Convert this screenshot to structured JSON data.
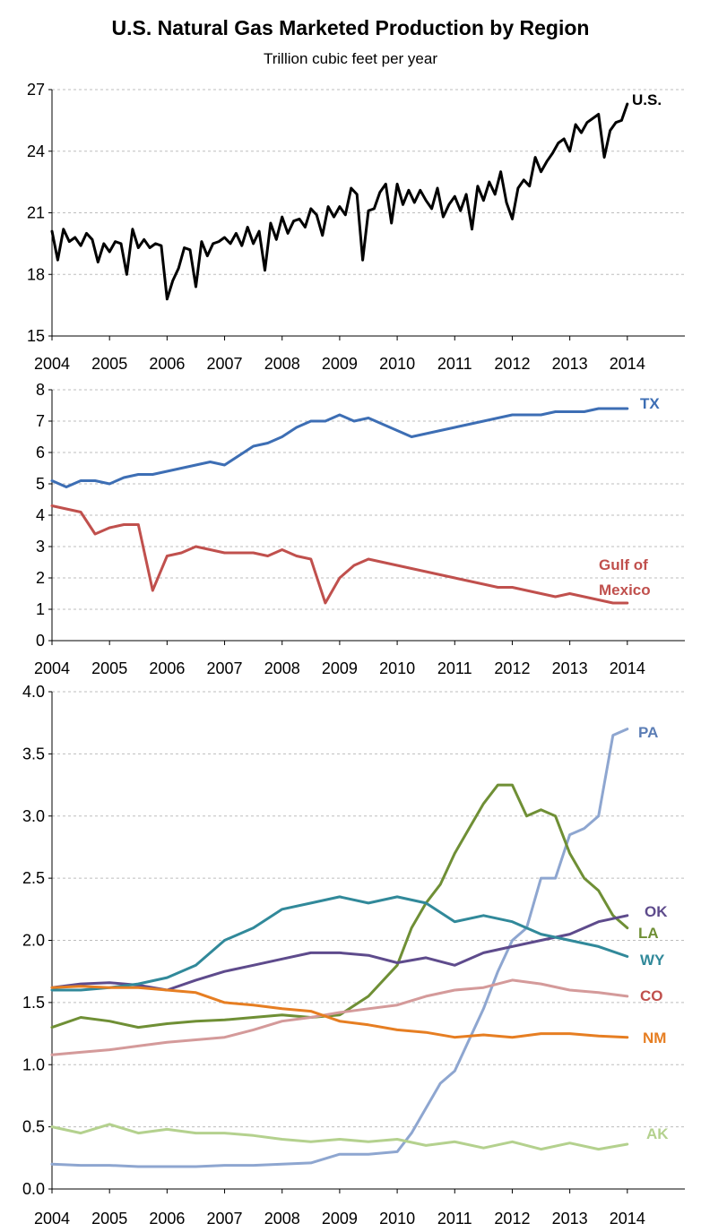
{
  "title": "U.S. Natural Gas Marketed Production by Region",
  "subtitle": "Trillion cubic feet per year",
  "chart_data": [
    {
      "type": "line",
      "x_ticks": [
        "2004",
        "2005",
        "2006",
        "2007",
        "2008",
        "2009",
        "2010",
        "2011",
        "2012",
        "2013",
        "2014"
      ],
      "xlim": [
        2004,
        2015
      ],
      "ylim": [
        15,
        27
      ],
      "y_ticks": [
        "15",
        "18",
        "21",
        "24",
        "27"
      ],
      "grid": "horizontal dashed",
      "series": [
        {
          "name": "U.S.",
          "color": "#000000",
          "x": [
            2004.0,
            2004.1,
            2004.2,
            2004.3,
            2004.4,
            2004.5,
            2004.6,
            2004.7,
            2004.8,
            2004.9,
            2005.0,
            2005.1,
            2005.2,
            2005.3,
            2005.4,
            2005.5,
            2005.6,
            2005.7,
            2005.8,
            2005.9,
            2006.0,
            2006.1,
            2006.2,
            2006.3,
            2006.4,
            2006.5,
            2006.6,
            2006.7,
            2006.8,
            2006.9,
            2007.0,
            2007.1,
            2007.2,
            2007.3,
            2007.4,
            2007.5,
            2007.6,
            2007.7,
            2007.8,
            2007.9,
            2008.0,
            2008.1,
            2008.2,
            2008.3,
            2008.4,
            2008.5,
            2008.6,
            2008.7,
            2008.8,
            2008.9,
            2009.0,
            2009.1,
            2009.2,
            2009.3,
            2009.4,
            2009.5,
            2009.6,
            2009.7,
            2009.8,
            2009.9,
            2010.0,
            2010.1,
            2010.2,
            2010.3,
            2010.4,
            2010.5,
            2010.6,
            2010.7,
            2010.8,
            2010.9,
            2011.0,
            2011.1,
            2011.2,
            2011.3,
            2011.4,
            2011.5,
            2011.6,
            2011.7,
            2011.8,
            2011.9,
            2012.0,
            2012.1,
            2012.2,
            2012.3,
            2012.4,
            2012.5,
            2012.6,
            2012.7,
            2012.8,
            2012.9,
            2013.0,
            2013.1,
            2013.2,
            2013.3,
            2013.4,
            2013.5,
            2013.6,
            2013.7,
            2013.8,
            2013.9,
            2014.0
          ],
          "y": [
            20.1,
            18.7,
            20.2,
            19.6,
            19.8,
            19.4,
            20.0,
            19.7,
            18.6,
            19.5,
            19.1,
            19.6,
            19.5,
            18.0,
            20.2,
            19.3,
            19.7,
            19.3,
            19.5,
            19.4,
            16.8,
            17.7,
            18.3,
            19.3,
            19.2,
            17.4,
            19.6,
            18.9,
            19.5,
            19.6,
            19.8,
            19.5,
            20.0,
            19.4,
            20.3,
            19.5,
            20.1,
            18.2,
            20.5,
            19.7,
            20.8,
            20.0,
            20.6,
            20.7,
            20.3,
            21.2,
            20.9,
            19.9,
            21.3,
            20.8,
            21.3,
            20.9,
            22.2,
            21.9,
            18.7,
            21.1,
            21.2,
            22.0,
            22.4,
            20.5,
            22.4,
            21.4,
            22.1,
            21.5,
            22.1,
            21.6,
            21.2,
            22.2,
            20.8,
            21.4,
            21.8,
            21.1,
            21.9,
            20.2,
            22.3,
            21.6,
            22.5,
            21.9,
            23.0,
            21.5,
            20.7,
            22.2,
            22.6,
            22.3,
            23.7,
            23.0,
            23.5,
            23.9,
            24.4,
            24.6,
            24.0,
            25.3,
            24.9,
            25.4,
            25.6,
            25.8,
            23.7,
            25.0,
            25.4,
            25.5,
            26.3
          ]
        }
      ],
      "labels": [
        {
          "text": "U.S.",
          "color": "#000000"
        }
      ]
    },
    {
      "type": "line",
      "x_ticks": [
        "2004",
        "2005",
        "2006",
        "2007",
        "2008",
        "2009",
        "2010",
        "2011",
        "2012",
        "2013",
        "2014"
      ],
      "xlim": [
        2004,
        2015
      ],
      "ylim": [
        0,
        8
      ],
      "y_ticks": [
        "0",
        "1",
        "2",
        "3",
        "4",
        "5",
        "6",
        "7",
        "8"
      ],
      "grid": "horizontal dashed",
      "series": [
        {
          "name": "TX",
          "color": "#3d6eb4",
          "x": [
            2004.0,
            2004.25,
            2004.5,
            2004.75,
            2005.0,
            2005.25,
            2005.5,
            2005.75,
            2006.0,
            2006.25,
            2006.5,
            2006.75,
            2007.0,
            2007.25,
            2007.5,
            2007.75,
            2008.0,
            2008.25,
            2008.5,
            2008.75,
            2009.0,
            2009.25,
            2009.5,
            2009.75,
            2010.0,
            2010.25,
            2010.5,
            2010.75,
            2011.0,
            2011.25,
            2011.5,
            2011.75,
            2012.0,
            2012.25,
            2012.5,
            2012.75,
            2013.0,
            2013.25,
            2013.5,
            2013.75,
            2014.0
          ],
          "y": [
            5.1,
            4.9,
            5.1,
            5.1,
            5.0,
            5.2,
            5.3,
            5.3,
            5.4,
            5.5,
            5.6,
            5.7,
            5.6,
            5.9,
            6.2,
            6.3,
            6.5,
            6.8,
            7.0,
            7.0,
            7.2,
            7.0,
            7.1,
            6.9,
            6.7,
            6.5,
            6.6,
            6.7,
            6.8,
            6.9,
            7.0,
            7.1,
            7.2,
            7.2,
            7.2,
            7.3,
            7.3,
            7.3,
            7.4,
            7.4,
            7.4
          ]
        },
        {
          "name": "Gulf of Mexico",
          "color": "#c0504d",
          "x": [
            2004.0,
            2004.25,
            2004.5,
            2004.75,
            2005.0,
            2005.25,
            2005.5,
            2005.75,
            2006.0,
            2006.25,
            2006.5,
            2006.75,
            2007.0,
            2007.25,
            2007.5,
            2007.75,
            2008.0,
            2008.25,
            2008.5,
            2008.75,
            2009.0,
            2009.25,
            2009.5,
            2009.75,
            2010.0,
            2010.25,
            2010.5,
            2010.75,
            2011.0,
            2011.25,
            2011.5,
            2011.75,
            2012.0,
            2012.25,
            2012.5,
            2012.75,
            2013.0,
            2013.25,
            2013.5,
            2013.75,
            2014.0
          ],
          "y": [
            4.3,
            4.2,
            4.1,
            3.4,
            3.6,
            3.7,
            3.7,
            1.6,
            2.7,
            2.8,
            3.0,
            2.9,
            2.8,
            2.8,
            2.8,
            2.7,
            2.9,
            2.7,
            2.6,
            1.2,
            2.0,
            2.4,
            2.6,
            2.5,
            2.4,
            2.3,
            2.2,
            2.1,
            2.0,
            1.9,
            1.8,
            1.7,
            1.7,
            1.6,
            1.5,
            1.4,
            1.5,
            1.4,
            1.3,
            1.2,
            1.2
          ]
        }
      ],
      "labels": [
        {
          "text": "TX",
          "color": "#3d6eb4"
        },
        {
          "text": "Gulf of",
          "color": "#c0504d"
        },
        {
          "text": "Mexico",
          "color": "#c0504d"
        }
      ]
    },
    {
      "type": "line",
      "x_ticks": [
        "2004",
        "2005",
        "2006",
        "2007",
        "2008",
        "2009",
        "2010",
        "2011",
        "2012",
        "2013",
        "2014"
      ],
      "xlim": [
        2004,
        2015
      ],
      "ylim": [
        0,
        4
      ],
      "y_ticks": [
        "0.0",
        "0.5",
        "1.0",
        "1.5",
        "2.0",
        "2.5",
        "3.0",
        "3.5",
        "4.0"
      ],
      "grid": "horizontal dashed",
      "series": [
        {
          "name": "PA",
          "color": "#8ea6d0",
          "x": [
            2004.0,
            2004.5,
            2005.0,
            2005.5,
            2006.0,
            2006.5,
            2007.0,
            2007.5,
            2008.0,
            2008.5,
            2009.0,
            2009.5,
            2010.0,
            2010.25,
            2010.5,
            2010.75,
            2011.0,
            2011.25,
            2011.5,
            2011.75,
            2012.0,
            2012.25,
            2012.5,
            2012.75,
            2013.0,
            2013.25,
            2013.5,
            2013.75,
            2014.0
          ],
          "y": [
            0.2,
            0.19,
            0.19,
            0.18,
            0.18,
            0.18,
            0.19,
            0.19,
            0.2,
            0.21,
            0.28,
            0.28,
            0.3,
            0.45,
            0.65,
            0.85,
            0.95,
            1.2,
            1.45,
            1.75,
            2.0,
            2.1,
            2.5,
            2.5,
            2.85,
            2.9,
            3.0,
            3.65,
            3.7
          ]
        },
        {
          "name": "LA",
          "color": "#6f8f35",
          "x": [
            2004.0,
            2004.5,
            2005.0,
            2005.5,
            2006.0,
            2006.5,
            2007.0,
            2007.5,
            2008.0,
            2008.5,
            2009.0,
            2009.5,
            2010.0,
            2010.25,
            2010.5,
            2010.75,
            2011.0,
            2011.25,
            2011.5,
            2011.75,
            2012.0,
            2012.25,
            2012.5,
            2012.75,
            2013.0,
            2013.25,
            2013.5,
            2013.75,
            2014.0
          ],
          "y": [
            1.3,
            1.38,
            1.35,
            1.3,
            1.33,
            1.35,
            1.36,
            1.38,
            1.4,
            1.38,
            1.4,
            1.55,
            1.8,
            2.1,
            2.3,
            2.45,
            2.7,
            2.9,
            3.1,
            3.25,
            3.25,
            3.0,
            3.05,
            3.0,
            2.7,
            2.5,
            2.4,
            2.2,
            2.1
          ]
        },
        {
          "name": "OK",
          "color": "#5e4b8c",
          "x": [
            2004.0,
            2004.5,
            2005.0,
            2005.5,
            2006.0,
            2006.5,
            2007.0,
            2007.5,
            2008.0,
            2008.5,
            2009.0,
            2009.5,
            2010.0,
            2010.5,
            2011.0,
            2011.5,
            2012.0,
            2012.5,
            2013.0,
            2013.5,
            2014.0
          ],
          "y": [
            1.62,
            1.65,
            1.66,
            1.64,
            1.6,
            1.68,
            1.75,
            1.8,
            1.85,
            1.9,
            1.9,
            1.88,
            1.82,
            1.86,
            1.8,
            1.9,
            1.95,
            2.0,
            2.05,
            2.15,
            2.2
          ]
        },
        {
          "name": "WY",
          "color": "#31899a",
          "x": [
            2004.0,
            2004.5,
            2005.0,
            2005.5,
            2006.0,
            2006.5,
            2007.0,
            2007.5,
            2008.0,
            2008.5,
            2009.0,
            2009.5,
            2010.0,
            2010.5,
            2011.0,
            2011.5,
            2012.0,
            2012.5,
            2013.0,
            2013.5,
            2014.0
          ],
          "y": [
            1.6,
            1.6,
            1.62,
            1.65,
            1.7,
            1.8,
            2.0,
            2.1,
            2.25,
            2.3,
            2.35,
            2.3,
            2.35,
            2.3,
            2.15,
            2.2,
            2.15,
            2.05,
            2.0,
            1.95,
            1.87
          ]
        },
        {
          "name": "CO",
          "color": "#d49a9a",
          "x": [
            2004.0,
            2004.5,
            2005.0,
            2005.5,
            2006.0,
            2006.5,
            2007.0,
            2007.5,
            2008.0,
            2008.5,
            2009.0,
            2009.5,
            2010.0,
            2010.5,
            2011.0,
            2011.5,
            2012.0,
            2012.5,
            2013.0,
            2013.5,
            2014.0
          ],
          "y": [
            1.08,
            1.1,
            1.12,
            1.15,
            1.18,
            1.2,
            1.22,
            1.28,
            1.35,
            1.38,
            1.42,
            1.45,
            1.48,
            1.55,
            1.6,
            1.62,
            1.68,
            1.65,
            1.6,
            1.58,
            1.55
          ]
        },
        {
          "name": "NM",
          "color": "#e67e22",
          "x": [
            2004.0,
            2004.5,
            2005.0,
            2005.5,
            2006.0,
            2006.5,
            2007.0,
            2007.5,
            2008.0,
            2008.5,
            2009.0,
            2009.5,
            2010.0,
            2010.5,
            2011.0,
            2011.5,
            2012.0,
            2012.5,
            2013.0,
            2013.5,
            2014.0
          ],
          "y": [
            1.62,
            1.63,
            1.62,
            1.62,
            1.6,
            1.58,
            1.5,
            1.48,
            1.45,
            1.43,
            1.35,
            1.32,
            1.28,
            1.26,
            1.22,
            1.24,
            1.22,
            1.25,
            1.25,
            1.23,
            1.22
          ]
        },
        {
          "name": "AK",
          "color": "#b4d18e",
          "x": [
            2004.0,
            2004.5,
            2005.0,
            2005.5,
            2006.0,
            2006.5,
            2007.0,
            2007.5,
            2008.0,
            2008.5,
            2009.0,
            2009.5,
            2010.0,
            2010.5,
            2011.0,
            2011.5,
            2012.0,
            2012.5,
            2013.0,
            2013.5,
            2014.0
          ],
          "y": [
            0.5,
            0.45,
            0.52,
            0.45,
            0.48,
            0.45,
            0.45,
            0.43,
            0.4,
            0.38,
            0.4,
            0.38,
            0.4,
            0.35,
            0.38,
            0.33,
            0.38,
            0.32,
            0.37,
            0.32,
            0.36
          ]
        }
      ],
      "labels": [
        {
          "text": "PA",
          "color": "#5b7db5"
        },
        {
          "text": "OK",
          "color": "#5e4b8c"
        },
        {
          "text": "LA",
          "color": "#6f8f35"
        },
        {
          "text": "WY",
          "color": "#31899a"
        },
        {
          "text": "CO",
          "color": "#c0504d"
        },
        {
          "text": "NM",
          "color": "#e67e22"
        },
        {
          "text": "AK",
          "color": "#b4d18e"
        }
      ]
    }
  ]
}
